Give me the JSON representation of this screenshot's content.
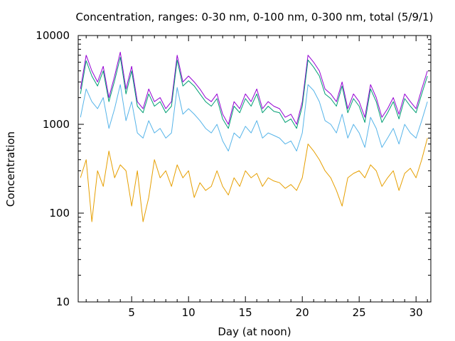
{
  "chart_data": {
    "type": "line",
    "title": "Concentration, ranges: 0-30 nm, 0-100 nm, 0-300 nm, total (5/9/1)",
    "xlabel": "Day (at noon)",
    "ylabel": "Concentration",
    "xlim": [
      0.3,
      31.3
    ],
    "ylim": [
      10,
      10000
    ],
    "yscale": "log",
    "x_ticks": [
      5,
      10,
      15,
      20,
      25,
      30
    ],
    "y_ticks": [
      10,
      100,
      1000,
      10000
    ],
    "y_tick_labels": [
      "10",
      "100",
      "1000",
      "10000"
    ],
    "grid": false,
    "legend": "none",
    "series": [
      {
        "color": "#9400d3",
        "x": [
          0.5,
          1.0,
          1.5,
          2.0,
          2.5,
          3.0,
          3.5,
          4.0,
          4.5,
          5.0,
          5.5,
          6.0,
          6.5,
          7.0,
          7.5,
          8.0,
          8.5,
          9.0,
          9.5,
          10.0,
          10.5,
          11.0,
          11.5,
          12.0,
          12.5,
          13.0,
          13.5,
          14.0,
          14.5,
          15.0,
          15.5,
          16.0,
          16.5,
          17.0,
          17.5,
          18.0,
          18.5,
          19.0,
          19.5,
          20.0,
          20.5,
          21.0,
          21.5,
          22.0,
          22.5,
          23.0,
          23.5,
          24.0,
          24.5,
          25.0,
          25.5,
          26.0,
          26.5,
          27.0,
          27.5,
          28.0,
          28.5,
          29.0,
          29.5,
          30.0,
          30.5,
          31.0
        ],
        "values": [
          2500,
          6000,
          4000,
          3000,
          4500,
          2000,
          3500,
          6500,
          2500,
          4500,
          1800,
          1500,
          2500,
          1800,
          2000,
          1500,
          1800,
          6000,
          3000,
          3500,
          3000,
          2500,
          2000,
          1800,
          2200,
          1300,
          1000,
          1800,
          1500,
          2200,
          1800,
          2500,
          1500,
          1800,
          1600,
          1500,
          1200,
          1300,
          1000,
          1800,
          6000,
          5000,
          4000,
          2500,
          2200,
          1800,
          3000,
          1500,
          2200,
          1800,
          1200,
          2800,
          2000,
          1200,
          1500,
          2000,
          1300,
          2200,
          1800,
          1500,
          2500,
          4000
        ]
      },
      {
        "color": "#009e73",
        "x": [
          0.5,
          1.0,
          1.5,
          2.0,
          2.5,
          3.0,
          3.5,
          4.0,
          4.5,
          5.0,
          5.5,
          6.0,
          6.5,
          7.0,
          7.5,
          8.0,
          8.5,
          9.0,
          9.5,
          10.0,
          10.5,
          11.0,
          11.5,
          12.0,
          12.5,
          13.0,
          13.5,
          14.0,
          14.5,
          15.0,
          15.5,
          16.0,
          16.5,
          17.0,
          17.5,
          18.0,
          18.5,
          19.0,
          19.5,
          20.0,
          20.5,
          21.0,
          21.5,
          22.0,
          22.5,
          23.0,
          23.5,
          24.0,
          24.5,
          25.0,
          25.5,
          26.0,
          26.5,
          27.0,
          27.5,
          28.0,
          28.5,
          29.0,
          29.5,
          30.0,
          30.5,
          31.0
        ],
        "values": [
          2200,
          5200,
          3500,
          2700,
          4000,
          1800,
          3100,
          5700,
          2200,
          4000,
          1600,
          1350,
          2200,
          1600,
          1800,
          1350,
          1600,
          5300,
          2700,
          3100,
          2700,
          2200,
          1800,
          1600,
          1950,
          1150,
          900,
          1600,
          1350,
          1950,
          1600,
          2200,
          1350,
          1600,
          1400,
          1350,
          1050,
          1150,
          900,
          1600,
          5300,
          4400,
          3500,
          2200,
          1950,
          1600,
          2700,
          1350,
          1950,
          1600,
          1050,
          2500,
          1800,
          1050,
          1350,
          1800,
          1150,
          1950,
          1600,
          1350,
          2200,
          3500
        ]
      },
      {
        "color": "#56b4e9",
        "x": [
          0.5,
          1.0,
          1.5,
          2.0,
          2.5,
          3.0,
          3.5,
          4.0,
          4.5,
          5.0,
          5.5,
          6.0,
          6.5,
          7.0,
          7.5,
          8.0,
          8.5,
          9.0,
          9.5,
          10.0,
          10.5,
          11.0,
          11.5,
          12.0,
          12.5,
          13.0,
          13.5,
          14.0,
          14.5,
          15.0,
          15.5,
          16.0,
          16.5,
          17.0,
          17.5,
          18.0,
          18.5,
          19.0,
          19.5,
          20.0,
          20.5,
          21.0,
          21.5,
          22.0,
          22.5,
          23.0,
          23.5,
          24.0,
          24.5,
          25.0,
          25.5,
          26.0,
          26.5,
          27.0,
          27.5,
          28.0,
          28.5,
          29.0,
          29.5,
          30.0,
          30.5,
          31.0
        ],
        "values": [
          1200,
          2500,
          1800,
          1500,
          2000,
          900,
          1500,
          2800,
          1100,
          1800,
          800,
          700,
          1100,
          800,
          900,
          700,
          800,
          2600,
          1300,
          1500,
          1300,
          1100,
          900,
          800,
          1000,
          650,
          500,
          800,
          700,
          950,
          800,
          1100,
          700,
          800,
          750,
          700,
          600,
          650,
          500,
          800,
          2800,
          2400,
          1800,
          1100,
          1000,
          800,
          1300,
          700,
          1000,
          800,
          550,
          1200,
          900,
          550,
          700,
          900,
          600,
          1000,
          800,
          700,
          1100,
          1800
        ]
      },
      {
        "color": "#e69f00",
        "x": [
          0.5,
          1.0,
          1.5,
          2.0,
          2.5,
          3.0,
          3.5,
          4.0,
          4.5,
          5.0,
          5.5,
          6.0,
          6.5,
          7.0,
          7.5,
          8.0,
          8.5,
          9.0,
          9.5,
          10.0,
          10.5,
          11.0,
          11.5,
          12.0,
          12.5,
          13.0,
          13.5,
          14.0,
          14.5,
          15.0,
          15.5,
          16.0,
          16.5,
          17.0,
          17.5,
          18.0,
          18.5,
          19.0,
          19.5,
          20.0,
          20.5,
          21.0,
          21.5,
          22.0,
          22.5,
          23.0,
          23.5,
          24.0,
          24.5,
          25.0,
          25.5,
          26.0,
          26.5,
          27.0,
          27.5,
          28.0,
          28.5,
          29.0,
          29.5,
          30.0,
          30.5,
          31.0
        ],
        "values": [
          250,
          400,
          80,
          300,
          200,
          500,
          250,
          350,
          300,
          120,
          300,
          80,
          150,
          400,
          250,
          300,
          200,
          350,
          250,
          300,
          150,
          220,
          180,
          200,
          300,
          200,
          160,
          250,
          200,
          300,
          250,
          280,
          200,
          250,
          230,
          220,
          190,
          210,
          180,
          250,
          600,
          500,
          400,
          300,
          250,
          180,
          120,
          250,
          280,
          300,
          250,
          350,
          300,
          200,
          250,
          300,
          180,
          280,
          320,
          250,
          400,
          700
        ]
      }
    ]
  }
}
